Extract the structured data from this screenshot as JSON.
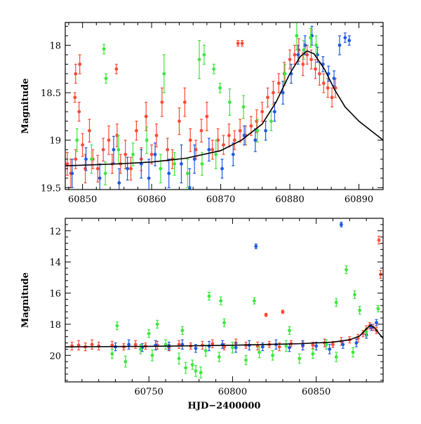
{
  "chart_data": [
    {
      "type": "scatter",
      "title": "",
      "xlabel": "",
      "ylabel": "Magnitude",
      "xlim": [
        60847.5,
        60893.5
      ],
      "ylim": [
        19.52,
        17.76
      ],
      "y_inverted": true,
      "x_ticks": [
        60850,
        60860,
        60870,
        60880,
        60890
      ],
      "y_ticks": [
        18,
        18.5,
        19,
        19.5
      ],
      "y_tick_labels": [
        "18",
        "18.5",
        "19",
        "19.5"
      ],
      "grid": false,
      "legend": "none",
      "model_curve": {
        "color": "#000000",
        "x": [
          60847.5,
          60855,
          60860,
          60865,
          60870,
          60873,
          60876,
          60878,
          60880,
          60881.5,
          60882.5,
          60883.5,
          60885,
          60886.5,
          60888,
          60890,
          60893.5
        ],
        "y": [
          19.27,
          19.25,
          19.23,
          19.19,
          19.11,
          19.0,
          18.83,
          18.6,
          18.3,
          18.12,
          18.06,
          18.09,
          18.25,
          18.47,
          18.65,
          18.8,
          19.0
        ]
      },
      "series": [
        {
          "color": "#ff4a33",
          "x": [
            60847.8,
            60848.3,
            60849.0,
            60849.5,
            60850.0,
            60850.4,
            60851.0,
            60851.5,
            60852.2,
            60853.0,
            60853.8,
            60854.3,
            60855.0,
            60855.5,
            60856.2,
            60857.0,
            60857.8,
            60858.5,
            60859.2,
            60860.0,
            60860.7,
            60861.5,
            60862.3,
            60863.0,
            60864.0,
            60864.8,
            60865.6,
            60866.4,
            60867.2,
            60868.0,
            60868.8,
            60869.6,
            60870.4,
            60871.2,
            60872.0,
            60872.8,
            60873.6,
            60874.4,
            60875.2,
            60876.0,
            60876.8,
            60877.6,
            60878.4,
            60879.2,
            60880.0,
            60880.7,
            60881.3,
            60881.9,
            60882.5,
            60883.1,
            60883.7,
            60884.3,
            60884.9,
            60885.5,
            60886.1,
            60886.6,
            60849.0,
            60849.6,
            60848.9,
            60854.9,
            60872.5,
            60873.1
          ],
          "y": [
            19.25,
            19.35,
            19.2,
            18.7,
            19.05,
            19.3,
            18.9,
            19.2,
            19.3,
            19.1,
            19.0,
            19.25,
            18.95,
            19.25,
            19.15,
            19.3,
            18.9,
            19.2,
            18.75,
            19.15,
            18.95,
            18.6,
            19.1,
            19.2,
            18.8,
            18.6,
            19.0,
            19.1,
            18.9,
            18.75,
            19.1,
            19.0,
            19.05,
            18.95,
            19.0,
            18.9,
            18.95,
            18.85,
            18.8,
            18.7,
            18.55,
            18.5,
            18.4,
            18.3,
            18.15,
            18.1,
            18.05,
            18.2,
            18.1,
            18.15,
            18.25,
            18.3,
            18.4,
            18.45,
            18.55,
            18.45,
            18.3,
            18.2,
            18.55,
            18.25,
            17.98,
            17.98
          ],
          "err": [
            0.12,
            0.15,
            0.1,
            0.1,
            0.12,
            0.15,
            0.12,
            0.1,
            0.14,
            0.12,
            0.15,
            0.1,
            0.12,
            0.1,
            0.15,
            0.12,
            0.1,
            0.12,
            0.15,
            0.1,
            0.12,
            0.15,
            0.12,
            0.1,
            0.14,
            0.15,
            0.12,
            0.1,
            0.12,
            0.15,
            0.1,
            0.12,
            0.1,
            0.12,
            0.1,
            0.12,
            0.1,
            0.1,
            0.12,
            0.1,
            0.1,
            0.12,
            0.1,
            0.12,
            0.1,
            0.1,
            0.12,
            0.12,
            0.1,
            0.1,
            0.1,
            0.12,
            0.1,
            0.1,
            0.1,
            0.1,
            0.1,
            0.1,
            0.05,
            0.05,
            0.03,
            0.03
          ]
        },
        {
          "color": "#1f5ae0",
          "x": [
            60848.5,
            60850.5,
            60852.5,
            60854.5,
            60856.5,
            60858.5,
            60860.5,
            60862.5,
            60864.3,
            60866.2,
            60868.3,
            60870.2,
            60871.8,
            60873.4,
            60875.0,
            60876.5,
            60877.8,
            60879.0,
            60880.2,
            60881.2,
            60882.2,
            60883.2,
            60884.0,
            60884.8,
            60885.6,
            60886.4,
            60887.2,
            60888.0,
            60888.6,
            60855.3,
            60859.6,
            60865.5
          ],
          "y": [
            19.35,
            19.2,
            19.4,
            19.1,
            19.3,
            19.25,
            19.15,
            19.35,
            19.25,
            19.2,
            19.1,
            19.3,
            19.15,
            18.95,
            19.0,
            18.9,
            18.7,
            18.5,
            18.3,
            18.1,
            18.0,
            17.9,
            18.1,
            18.2,
            18.3,
            18.35,
            18.0,
            17.92,
            17.95,
            19.45,
            19.4,
            19.5
          ],
          "err": [
            0.15,
            0.12,
            0.15,
            0.14,
            0.12,
            0.15,
            0.12,
            0.15,
            0.2,
            0.15,
            0.12,
            0.1,
            0.12,
            0.1,
            0.12,
            0.1,
            0.1,
            0.12,
            0.1,
            0.1,
            0.1,
            0.1,
            0.08,
            0.08,
            0.08,
            0.08,
            0.1,
            0.05,
            0.05,
            0.15,
            0.2,
            0.2
          ]
        },
        {
          "color": "#3ee63e",
          "x": [
            60849.2,
            60851.3,
            60853.3,
            60855.2,
            60857.3,
            60859.3,
            60861.3,
            60863.3,
            60865.2,
            60867.3,
            60869.3,
            60871.3,
            60873.3,
            60875.3,
            60877.3,
            60879.3,
            60881.0,
            60882.0,
            60883.0,
            60883.8,
            60853.1,
            60853.4,
            60861.8,
            60866.9,
            60867.6,
            60869.0,
            60869.9
          ],
          "y": [
            19.0,
            19.2,
            19.35,
            19.1,
            19.15,
            19.0,
            19.3,
            19.25,
            19.35,
            19.25,
            19.15,
            18.6,
            18.65,
            18.9,
            18.8,
            18.3,
            17.9,
            18.05,
            17.92,
            18.0,
            18.04,
            18.35,
            18.3,
            18.15,
            18.1,
            18.25,
            18.45
          ],
          "err": [
            0.12,
            0.15,
            0.12,
            0.15,
            0.12,
            0.14,
            0.15,
            0.12,
            0.15,
            0.12,
            0.15,
            0.14,
            0.12,
            0.12,
            0.1,
            0.1,
            0.15,
            0.1,
            0.1,
            0.1,
            0.05,
            0.05,
            0.2,
            0.2,
            0.1,
            0.05,
            0.05
          ]
        }
      ]
    },
    {
      "type": "scatter",
      "title": "",
      "xlabel": "HJD−2400000",
      "ylabel": "Magnitude",
      "xlim": [
        60700,
        60890
      ],
      "ylim": [
        21.7,
        11.2
      ],
      "y_inverted": true,
      "x_ticks": [
        60750,
        60800,
        60850
      ],
      "y_ticks": [
        12,
        14,
        16,
        18,
        20
      ],
      "y_tick_labels": [
        "12",
        "14",
        "16",
        "18",
        "20"
      ],
      "grid": false,
      "legend": "none",
      "model_curve": {
        "color": "#000000",
        "x": [
          60700,
          60750,
          60800,
          60840,
          60860,
          60870,
          60876,
          60880,
          60882.5,
          60885,
          60888,
          60890
        ],
        "y": [
          19.45,
          19.42,
          19.35,
          19.25,
          19.15,
          19.0,
          18.75,
          18.3,
          18.06,
          18.25,
          18.65,
          18.9
        ]
      },
      "series": [
        {
          "color": "#ff4a33",
          "x": [
            60704,
            60708,
            60712,
            60716,
            60720,
            60728,
            60735,
            60742,
            60748,
            60755,
            60762,
            60768,
            60775,
            60782,
            60788,
            60795,
            60802,
            60808,
            60815,
            60822,
            60828,
            60835,
            60842,
            60848,
            60855,
            60860,
            60865,
            60870,
            60875,
            60878,
            60880,
            60882,
            60884,
            60886,
            60887.5,
            60888.5,
            60820,
            60830
          ],
          "y": [
            19.4,
            19.35,
            19.45,
            19.3,
            19.4,
            19.35,
            19.45,
            19.3,
            19.4,
            19.35,
            19.5,
            19.3,
            19.4,
            19.35,
            19.25,
            19.45,
            19.2,
            19.35,
            19.4,
            19.3,
            19.45,
            19.25,
            19.4,
            19.35,
            19.2,
            19.3,
            19.1,
            19.0,
            18.9,
            18.6,
            18.3,
            18.1,
            18.2,
            18.4,
            12.6,
            14.8,
            17.4,
            17.2
          ],
          "err": [
            0.25,
            0.3,
            0.25,
            0.3,
            0.25,
            0.25,
            0.2,
            0.25,
            0.2,
            0.25,
            0.2,
            0.25,
            0.2,
            0.25,
            0.25,
            0.2,
            0.25,
            0.2,
            0.25,
            0.2,
            0.25,
            0.2,
            0.25,
            0.2,
            0.25,
            0.2,
            0.25,
            0.2,
            0.25,
            0.2,
            0.2,
            0.2,
            0.2,
            0.2,
            0.25,
            0.25,
            0.1,
            0.1
          ]
        },
        {
          "color": "#1f5ae0",
          "x": [
            60730,
            60738,
            60746,
            60754,
            60762,
            60770,
            60778,
            60786,
            60794,
            60802,
            60810,
            60818,
            60826,
            60834,
            60842,
            60850,
            60858,
            60866,
            60874,
            60880,
            60883,
            60886,
            60814,
            60865
          ],
          "y": [
            19.45,
            19.3,
            19.5,
            19.35,
            19.4,
            19.3,
            19.55,
            19.4,
            19.3,
            19.5,
            19.35,
            19.45,
            19.3,
            19.5,
            19.35,
            19.4,
            19.6,
            19.3,
            19.2,
            18.7,
            18.2,
            17.9,
            13.0,
            11.6
          ],
          "err": [
            0.25,
            0.3,
            0.25,
            0.3,
            0.25,
            0.3,
            0.25,
            0.3,
            0.25,
            0.3,
            0.3,
            0.25,
            0.3,
            0.25,
            0.3,
            0.25,
            0.3,
            0.25,
            0.25,
            0.2,
            0.2,
            0.2,
            0.15,
            0.15
          ]
        },
        {
          "color": "#3ee63e",
          "x": [
            60728,
            60736,
            60745,
            60752,
            60760,
            60768,
            60776,
            60784,
            60792,
            60800,
            60808,
            60816,
            60824,
            60832,
            60840,
            60848,
            60856,
            60862,
            60872,
            60880,
            60755,
            60770,
            60772,
            60778,
            60781,
            60786,
            60793,
            60813,
            60868,
            60873,
            60876,
            60887,
            60731,
            60750,
            60795,
            60834,
            60862
          ],
          "y": [
            19.9,
            20.4,
            19.6,
            20.0,
            19.3,
            20.2,
            20.6,
            19.7,
            20.1,
            19.5,
            20.3,
            19.8,
            20.0,
            19.4,
            20.2,
            19.9,
            19.3,
            20.1,
            19.8,
            18.5,
            18.0,
            18.4,
            20.8,
            21.0,
            21.1,
            16.2,
            16.5,
            16.5,
            14.5,
            16.1,
            17.1,
            17.0,
            18.1,
            18.6,
            17.9,
            18.4,
            16.6
          ],
          "err": [
            0.3,
            0.35,
            0.3,
            0.35,
            0.3,
            0.35,
            0.3,
            0.35,
            0.3,
            0.35,
            0.3,
            0.35,
            0.3,
            0.35,
            0.3,
            0.3,
            0.3,
            0.3,
            0.3,
            0.25,
            0.25,
            0.25,
            0.35,
            0.35,
            0.35,
            0.25,
            0.25,
            0.2,
            0.25,
            0.25,
            0.25,
            0.2,
            0.25,
            0.25,
            0.25,
            0.25,
            0.25
          ]
        }
      ]
    }
  ]
}
